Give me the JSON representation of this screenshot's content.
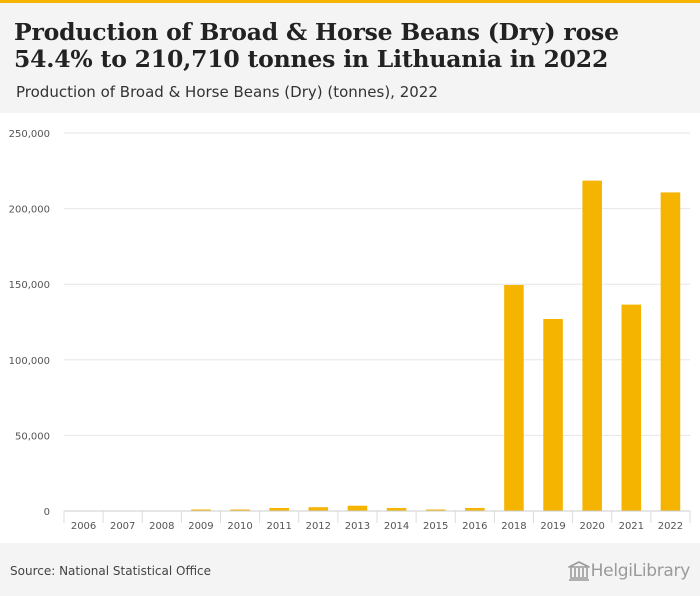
{
  "title": "Production of Broad & Horse Beans (Dry) rose 54.4% to 210,710 tonnes in Lithuania in 2022",
  "subtitle": "Production of Broad & Horse Beans (Dry) (tonnes), 2022",
  "source": "Source: National Statistical Office",
  "logo_text": "HelgiLibrary",
  "colors": {
    "bar": "#f5b400",
    "accent": "#f5b400",
    "header_bg": "#f4f4f4"
  },
  "chart_data": {
    "type": "bar",
    "categories": [
      "2006",
      "2007",
      "2008",
      "2009",
      "2010",
      "2011",
      "2012",
      "2013",
      "2014",
      "2015",
      "2016",
      "2018",
      "2019",
      "2020",
      "2021",
      "2022"
    ],
    "values": [
      0,
      0,
      0,
      1000,
      1000,
      2000,
      2500,
      3500,
      2000,
      1000,
      2000,
      149500,
      127000,
      218500,
      136500,
      210710
    ],
    "ylim": [
      0,
      250000
    ],
    "yticks": [
      0,
      50000,
      100000,
      150000,
      200000,
      250000
    ],
    "ytick_labels": [
      "0",
      "50,000",
      "100,000",
      "150,000",
      "200,000",
      "250,000"
    ],
    "grid": true,
    "legend": "none"
  }
}
